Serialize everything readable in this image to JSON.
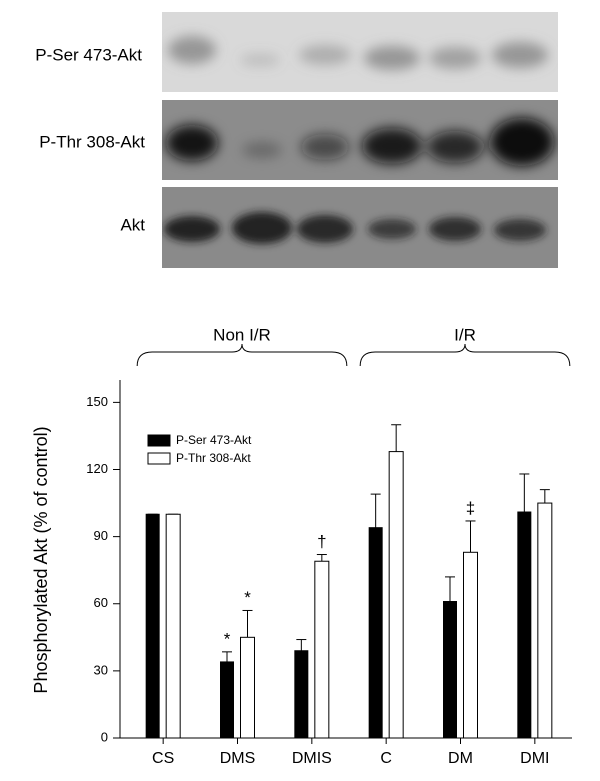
{
  "blot": {
    "labels": [
      "P-Ser 473-Akt",
      "P-Thr 308-Akt",
      "Akt"
    ]
  },
  "chart_data": {
    "type": "bar",
    "ylabel": "Phosphorylated Akt (% of control)",
    "categories": [
      "CS",
      "DMS",
      "DMIS",
      "C",
      "DM",
      "DMI"
    ],
    "groups": [
      {
        "label": "Non I/R",
        "span": [
          0,
          2
        ]
      },
      {
        "label": "I/R",
        "span": [
          3,
          5
        ]
      }
    ],
    "series": [
      {
        "name": "P-Ser 473-Akt",
        "color": "#000000",
        "values": [
          100,
          34,
          39,
          94,
          61,
          101
        ],
        "errors": [
          0,
          4.5,
          5,
          15,
          11,
          17
        ],
        "annotations": [
          null,
          "*",
          null,
          null,
          null,
          null
        ]
      },
      {
        "name": "P-Thr 308-Akt",
        "color": "#ffffff",
        "values": [
          100,
          45,
          79,
          128,
          83,
          105
        ],
        "errors": [
          0,
          12,
          3,
          12,
          14,
          6
        ],
        "annotations": [
          null,
          "*",
          "†",
          null,
          "‡",
          null
        ]
      }
    ],
    "ylim": [
      0,
      160
    ],
    "yticks": [
      0,
      30,
      60,
      90,
      120,
      150
    ],
    "legend": "upper left",
    "grid": false
  }
}
